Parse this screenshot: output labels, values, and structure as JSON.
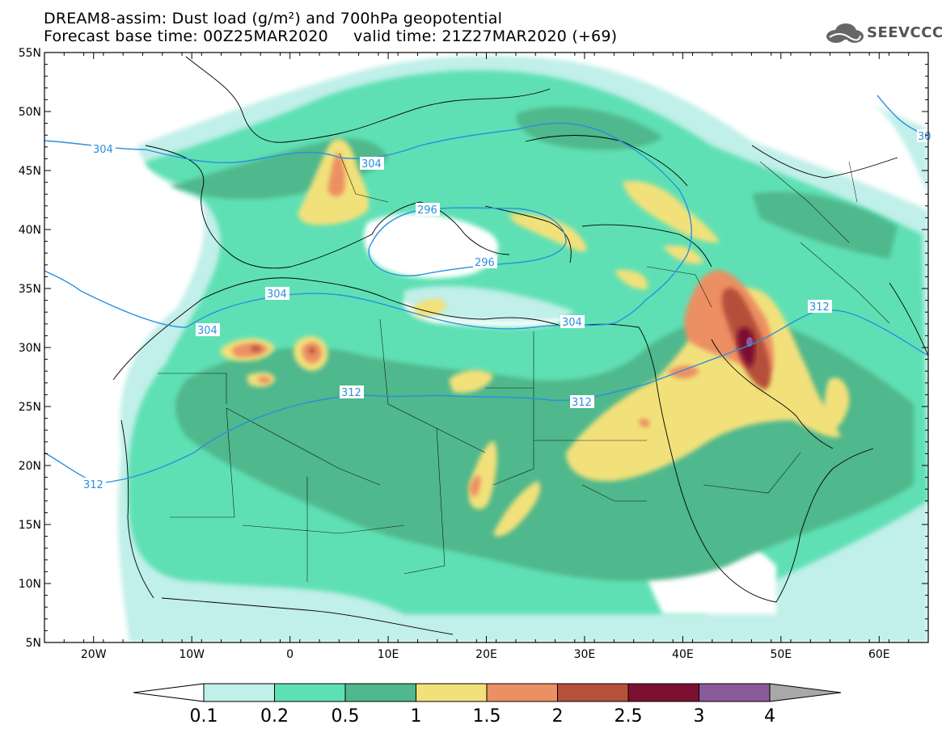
{
  "header": {
    "title_line1": "DREAM8-assim: Dust load (g/m²) and 700hPa geopotential",
    "title_line2": "Forecast base time: 00Z25MAR2020     valid time: 21Z27MAR2020 (+69)"
  },
  "logo": {
    "text": "SEEVCCC",
    "icon": "cloud-icon"
  },
  "map": {
    "lat_labels": [
      "55N",
      "50N",
      "45N",
      "40N",
      "35N",
      "30N",
      "25N",
      "20N",
      "15N",
      "10N",
      "5N"
    ],
    "lon_labels": [
      "20W",
      "10W",
      "0",
      "10E",
      "20E",
      "30E",
      "40E",
      "50E",
      "60E"
    ],
    "lon_range": [
      -25,
      65
    ],
    "lat_range": [
      5,
      55
    ],
    "geopotential_labels": [
      "304",
      "304",
      "296",
      "296",
      "304",
      "304",
      "304",
      "312",
      "312",
      "312",
      "312",
      "30"
    ],
    "contour_color": "#2a8fe0"
  },
  "colorbar": {
    "labels": [
      "0.1",
      "0.2",
      "0.5",
      "1",
      "1.5",
      "2",
      "2.5",
      "3",
      "4"
    ],
    "colors": [
      "#c1efe9",
      "#5ee0b4",
      "#4fb88c",
      "#f2e17a",
      "#ec8f62",
      "#b5503a",
      "#7c1031",
      "#8a5a9a",
      "#a8a8a8"
    ],
    "below_color": "#ffffff"
  }
}
